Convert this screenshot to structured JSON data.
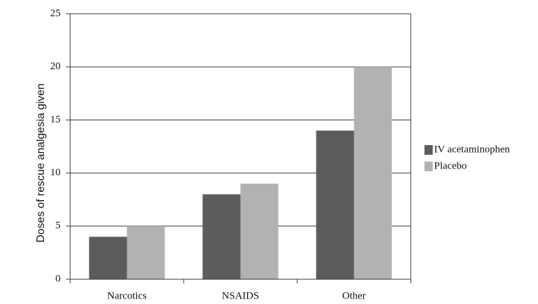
{
  "chart_data": {
    "type": "bar",
    "y_label": "Doses of rescue analgesia given",
    "categories": [
      "Narcotics",
      "NSAIDS",
      "Other"
    ],
    "series": [
      {
        "name": "IV acetaminophen",
        "color": "#5c5c5c",
        "values": [
          4,
          8,
          14
        ]
      },
      {
        "name": "Placebo",
        "color": "#b2b2b2",
        "values": [
          5,
          9,
          20
        ]
      }
    ],
    "ylim": [
      0,
      25
    ],
    "yticks": [
      0,
      5,
      10,
      15,
      20,
      25
    ],
    "grid": true,
    "legend": "right"
  }
}
